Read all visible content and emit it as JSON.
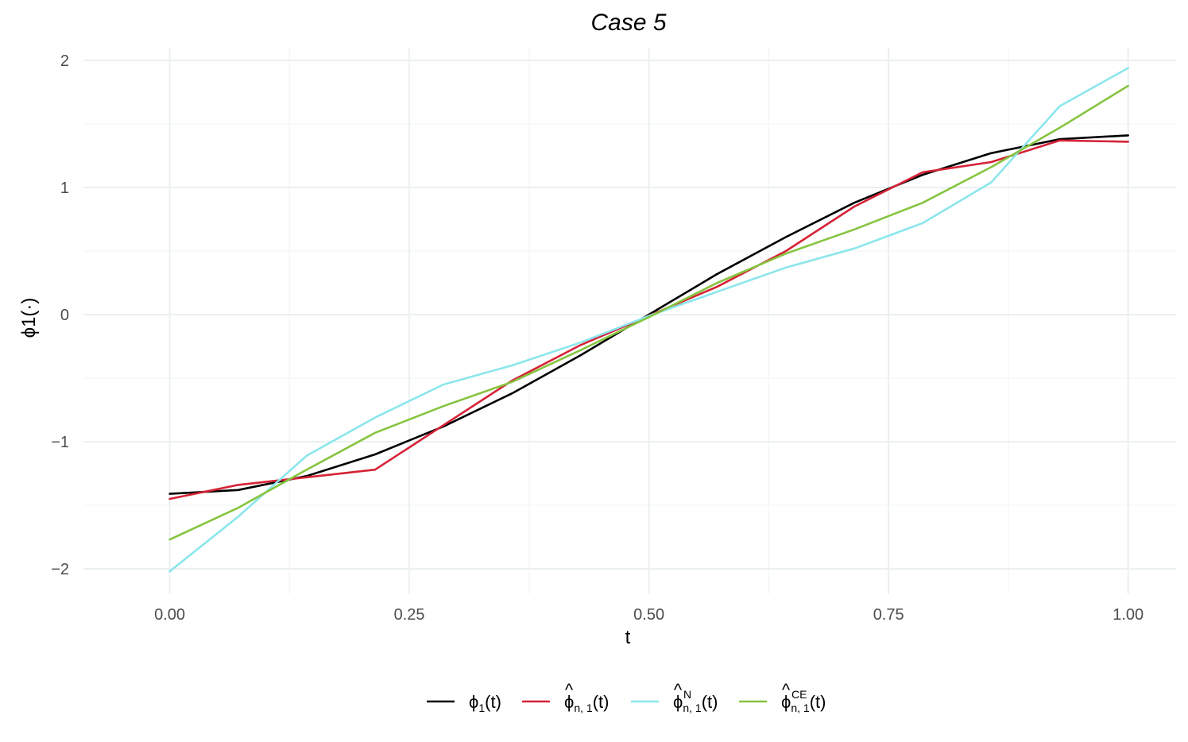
{
  "chart_data": {
    "type": "line",
    "title": "Case 5",
    "xlabel": "t",
    "ylabel": "ϕ1(·)",
    "xlim": [
      -0.09,
      1.05
    ],
    "ylim": [
      -2.2,
      2.1
    ],
    "x_ticks": [
      "0.00",
      "0.25",
      "0.50",
      "0.75",
      "1.00"
    ],
    "y_ticks": [
      "−2",
      "−1",
      "0",
      "1",
      "2"
    ],
    "grid": true,
    "legend_position": "bottom",
    "x": [
      0,
      0.0714,
      0.1429,
      0.2143,
      0.2857,
      0.3571,
      0.4286,
      0.5,
      0.5714,
      0.6429,
      0.7143,
      0.7857,
      0.8571,
      0.9286,
      1.0
    ],
    "series": [
      {
        "name": "ϕ1(t)",
        "legend": {
          "base": "ϕ",
          "sub": "1",
          "sup": "",
          "hat": false,
          "suffix": "(t)"
        },
        "color": "#000000",
        "values": [
          -1.41,
          -1.38,
          -1.27,
          -1.1,
          -0.88,
          -0.62,
          -0.32,
          0.0,
          0.32,
          0.61,
          0.88,
          1.1,
          1.27,
          1.38,
          1.41
        ]
      },
      {
        "name": "ϕ̂n,1(t)",
        "legend": {
          "base": "ϕ",
          "sub": "n, 1",
          "sup": "",
          "hat": true,
          "suffix": "(t)"
        },
        "color": "#d62236",
        "values": [
          -1.45,
          -1.34,
          -1.28,
          -1.22,
          -0.87,
          -0.52,
          -0.24,
          -0.01,
          0.22,
          0.5,
          0.85,
          1.12,
          1.2,
          1.37,
          1.36
        ]
      },
      {
        "name": "ϕ̂Nn,1(t)",
        "legend": {
          "base": "ϕ",
          "sub": "n, 1",
          "sup": "N",
          "hat": true,
          "suffix": "(t)"
        },
        "color": "#8be6ec",
        "values": [
          -2.02,
          -1.59,
          -1.11,
          -0.81,
          -0.55,
          -0.4,
          -0.22,
          -0.01,
          0.18,
          0.37,
          0.52,
          0.72,
          1.04,
          1.64,
          1.94
        ]
      },
      {
        "name": "ϕ̂CEn,1(t)",
        "legend": {
          "base": "ϕ",
          "sub": "n, 1",
          "sup": "CE",
          "hat": true,
          "suffix": "(t)"
        },
        "color": "#86c440",
        "values": [
          -1.77,
          -1.52,
          -1.22,
          -0.93,
          -0.72,
          -0.53,
          -0.28,
          -0.02,
          0.25,
          0.48,
          0.67,
          0.88,
          1.16,
          1.47,
          1.8
        ]
      }
    ]
  }
}
